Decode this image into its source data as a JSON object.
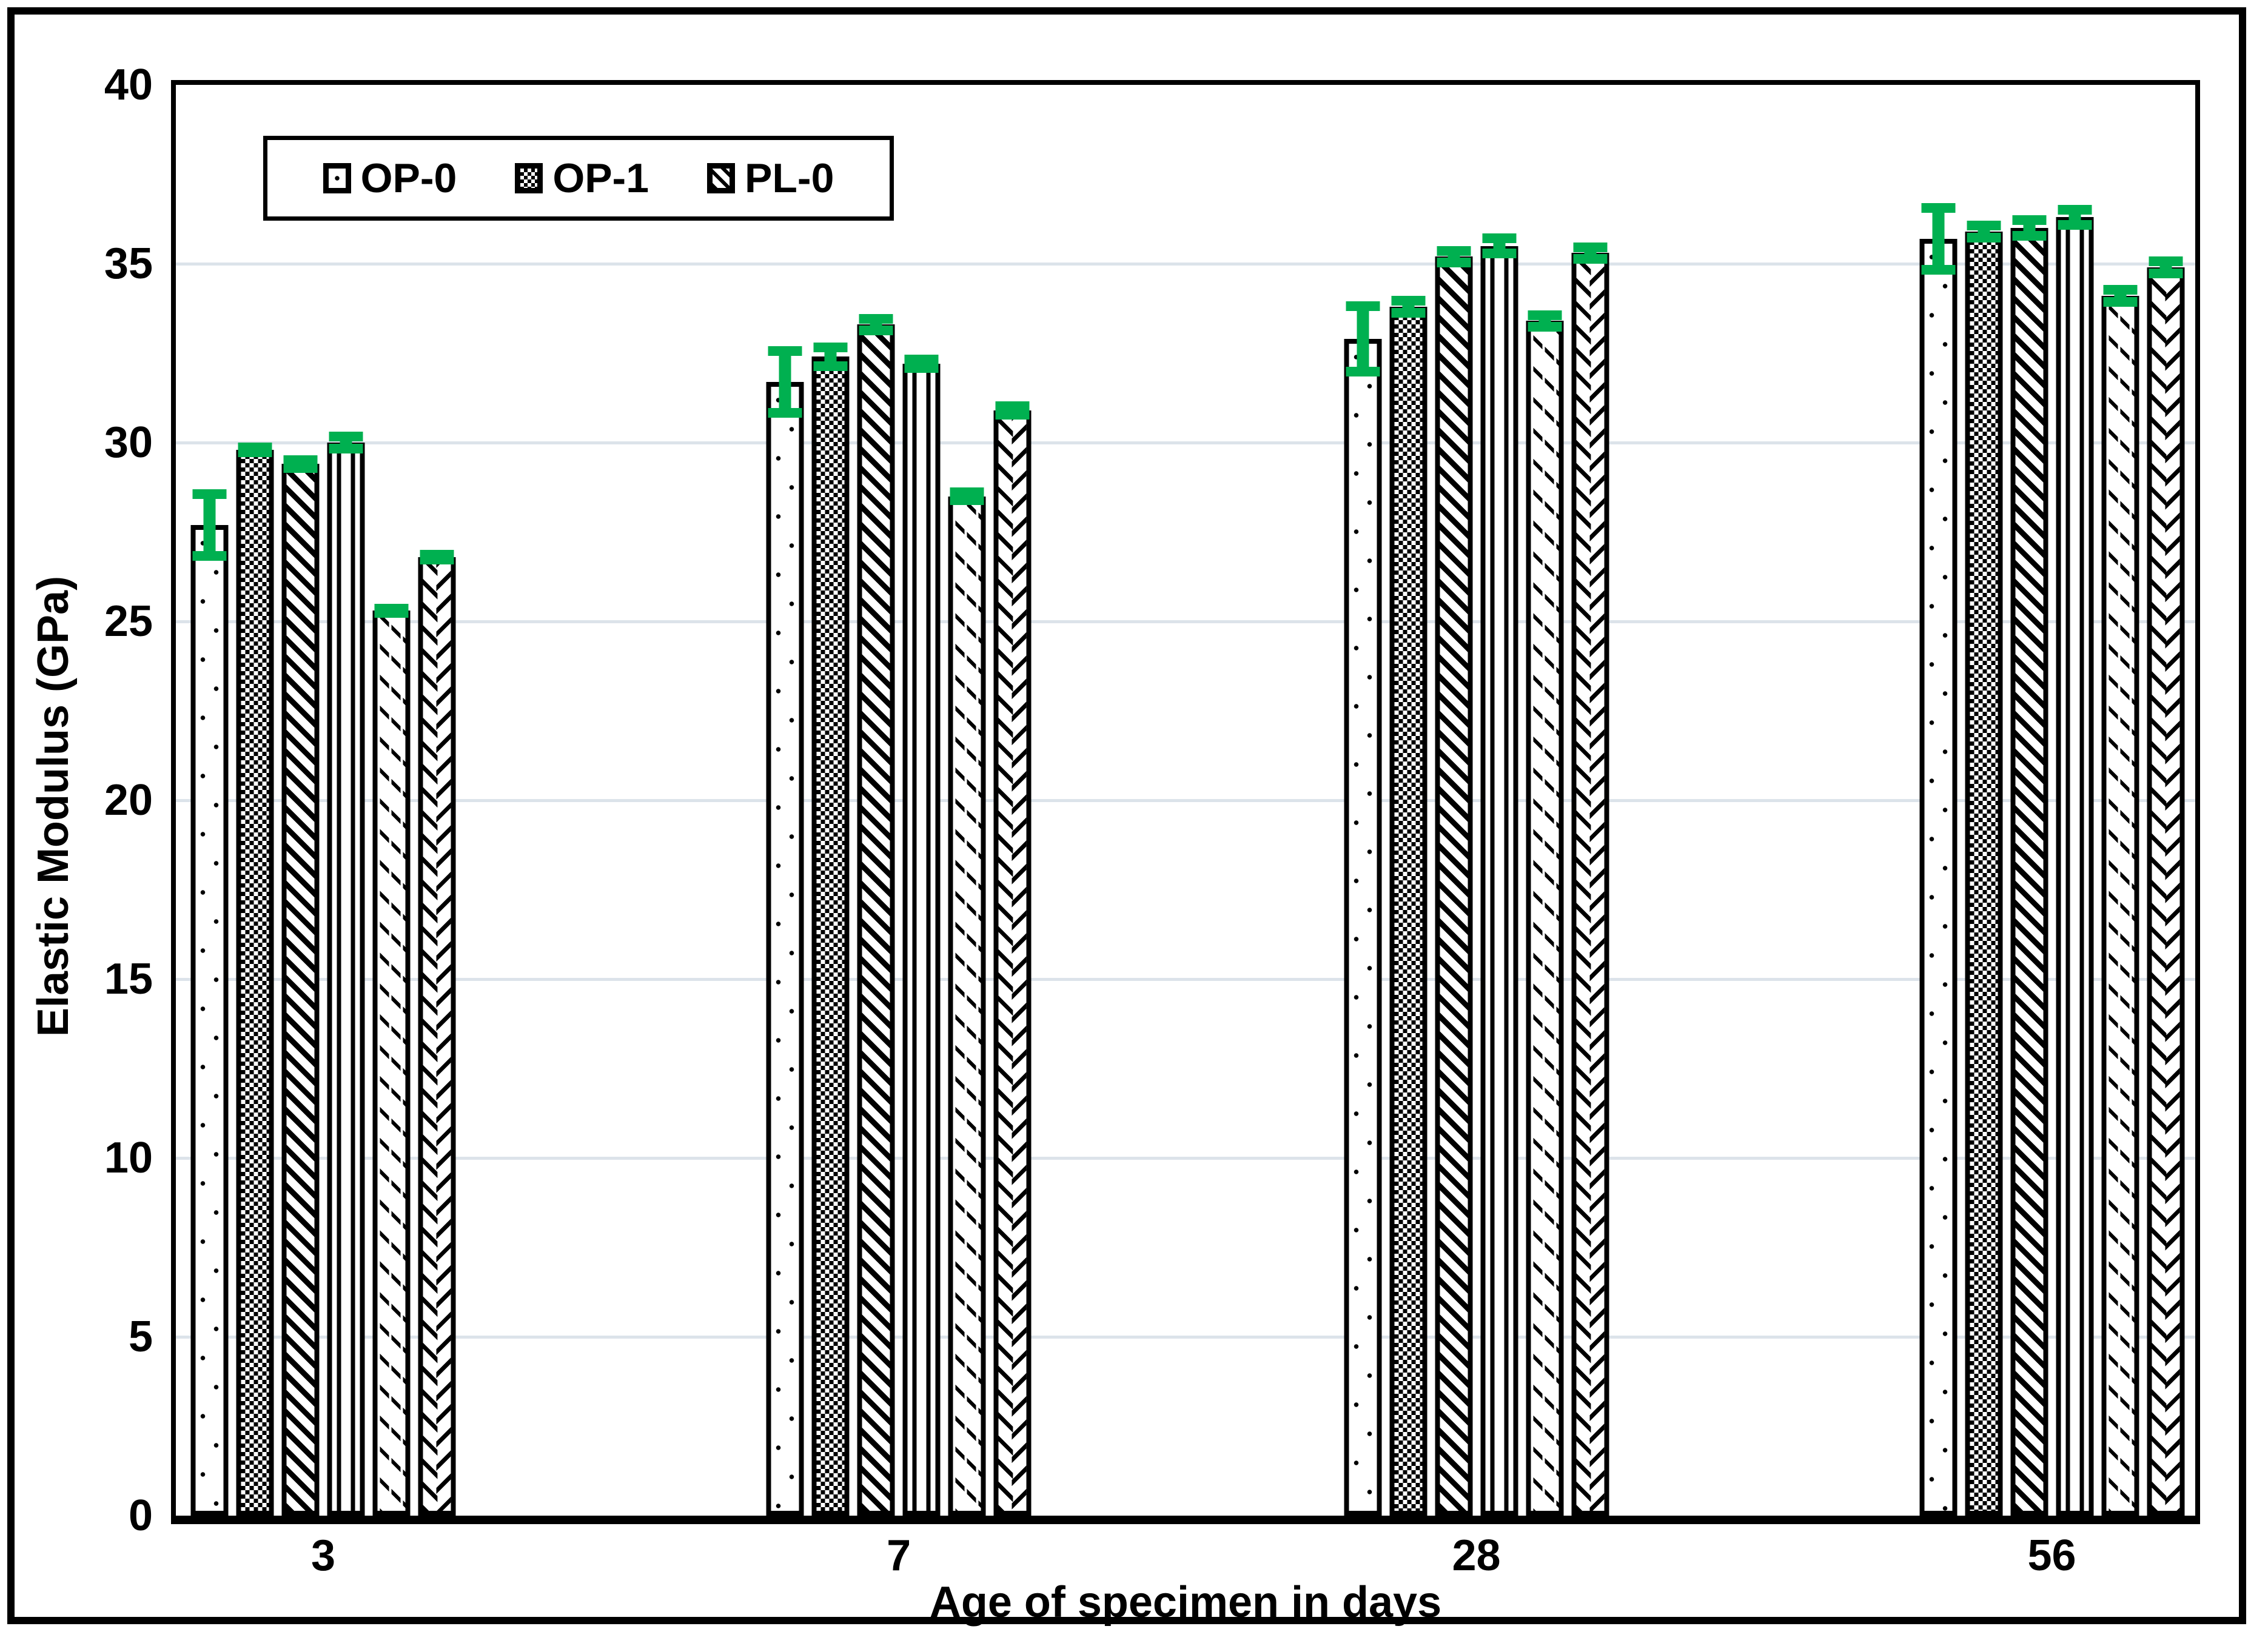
{
  "figure": {
    "y_axis_title": "Elastic Modulus (GPa)",
    "x_axis_title": "Age of specimen in days",
    "colors": {
      "error_bar": "#00B050",
      "gridline": "#dce3ea",
      "bar_outline": "#000000",
      "bar_fill": "#ffffff"
    }
  },
  "legend": {
    "items": [
      {
        "label": "OP-0",
        "pattern": "dots"
      },
      {
        "label": "OP-1",
        "pattern": "checker"
      },
      {
        "label": "PL-0",
        "pattern": "diag-heavy"
      }
    ]
  },
  "chart_data": {
    "type": "bar",
    "title": "",
    "xlabel": "Age of specimen in days",
    "ylabel": "Elastic Modulus (GPa)",
    "ylim": [
      0,
      40
    ],
    "y_ticks": [
      0,
      5,
      10,
      15,
      20,
      25,
      30,
      35,
      40
    ],
    "grid": true,
    "legend_position": "top-left",
    "categories": [
      "3",
      "7",
      "28",
      "56"
    ],
    "series": [
      {
        "name": "OP-0",
        "pattern": "dots",
        "values": [
          27.7,
          31.7,
          32.9,
          35.7
        ],
        "errors": [
          1.0,
          1.0,
          1.05,
          1.0
        ]
      },
      {
        "name": "OP-1",
        "pattern": "checker",
        "values": [
          29.8,
          32.4,
          33.8,
          35.9
        ],
        "errors": [
          0.2,
          0.4,
          0.3,
          0.3
        ]
      },
      {
        "name": "PL-0",
        "pattern": "diag-heavy",
        "values": [
          29.4,
          33.3,
          35.2,
          36.0
        ],
        "errors": [
          0.25,
          0.3,
          0.3,
          0.35
        ]
      },
      {
        "name": "",
        "pattern": "vertical-lines",
        "values": [
          30.0,
          32.2,
          35.5,
          36.3
        ],
        "errors": [
          0.3,
          0.25,
          0.35,
          0.35
        ]
      },
      {
        "name": "",
        "pattern": "diag-light",
        "values": [
          25.3,
          28.5,
          33.4,
          34.1
        ],
        "errors": [
          0.2,
          0.25,
          0.3,
          0.3
        ]
      },
      {
        "name": "",
        "pattern": "chevron",
        "values": [
          26.8,
          30.9,
          35.3,
          34.9
        ],
        "errors": [
          0.2,
          0.25,
          0.3,
          0.3
        ]
      }
    ],
    "group_centers_pct": [
      7.3,
      35.8,
      64.4,
      92.9
    ]
  }
}
